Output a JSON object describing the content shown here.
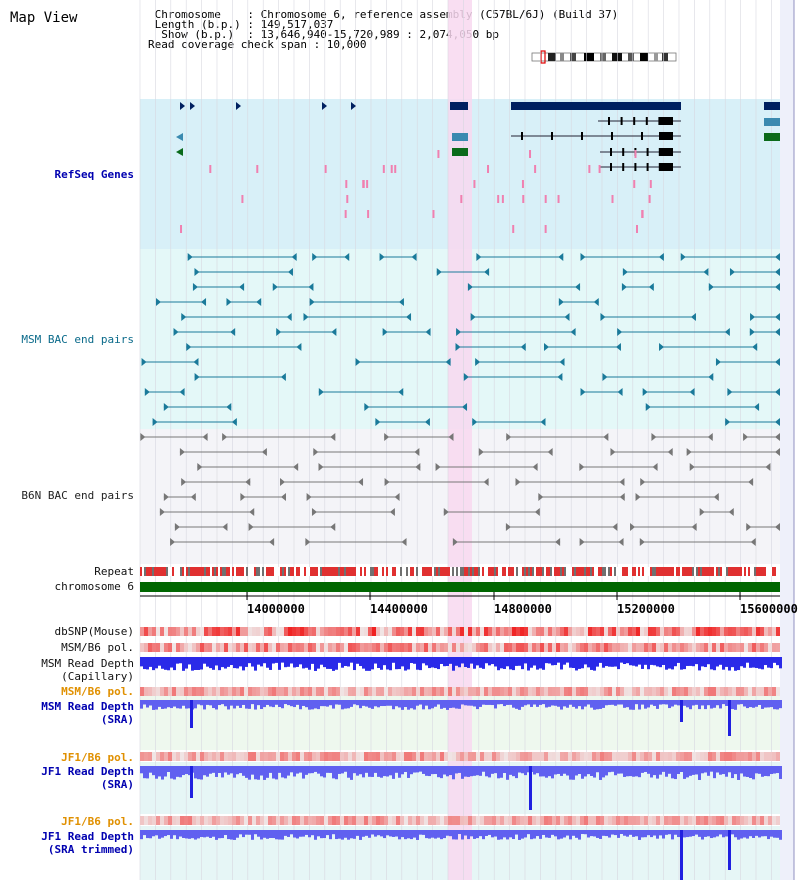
{
  "title": "Map View",
  "chromosome_info": {
    "line1": " Chromosome    : Chromosome 6, reference assembly (C57BL/6J) (Build 37)",
    "line2": " Length (b.p.) : 149,517,037",
    "line3": "  Show (b.p.)  : 13,646,940-15,720,989 : 2,074,050 bp",
    "line4": "Read coverage check span : 10,000"
  },
  "tracks": {
    "refseq": "RefSeq Genes",
    "msm_bac": "MSM BAC end pairs",
    "b6n_bac": "B6N BAC end pairs",
    "repeat": "Repeat",
    "chromosome": "chromosome 6",
    "dbsnp": "dbSNP(Mouse)",
    "msm_pol": "MSM/B6 pol.",
    "msm_depth_cap_1": "MSM Read Depth",
    "msm_depth_cap_2": "(Capillary)",
    "msm_pol_sra": "MSM/B6 pol.",
    "msm_depth_sra_1": "MSM Read Depth",
    "msm_depth_sra_2": "(SRA)",
    "jf1_pol": "JF1/B6 pol.",
    "jf1_depth_1": "JF1 Read Depth",
    "jf1_depth_2": "(SRA)",
    "jf1_pol2": "JF1/B6 pol.",
    "jf1_trim_1": "JF1 Read Depth",
    "jf1_trim_2": "(SRA trimmed)"
  },
  "axis": {
    "ticks": [
      "14000000",
      "14400000",
      "14800000",
      "15200000",
      "15600000"
    ]
  },
  "colors": {
    "refseq_bg": "#d8f0f8",
    "msm_bg": "#e4f8f8",
    "b6n_bg": "#f4f4f8",
    "highlight": "#f8d8f0",
    "chrom": "#006600",
    "navy": "#002060",
    "teal": "#1a7a9a",
    "pol": "#f06060",
    "depth": "#6060f0"
  }
}
